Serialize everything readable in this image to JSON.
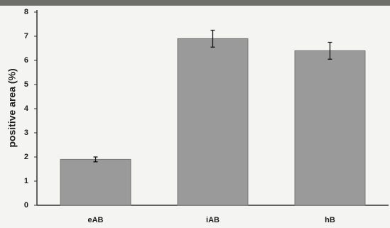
{
  "chart_data": {
    "type": "bar",
    "y_label": "positive area (%)",
    "categories": [
      "eAB",
      "iAB",
      "hB"
    ],
    "values": [
      1.9,
      6.9,
      6.4
    ],
    "errors": [
      0.1,
      0.35,
      0.35
    ],
    "color": "#9a9a9a",
    "ylim": [
      0,
      8
    ],
    "yticks": [
      0,
      1,
      2,
      3,
      4,
      5,
      6,
      7,
      8
    ]
  }
}
